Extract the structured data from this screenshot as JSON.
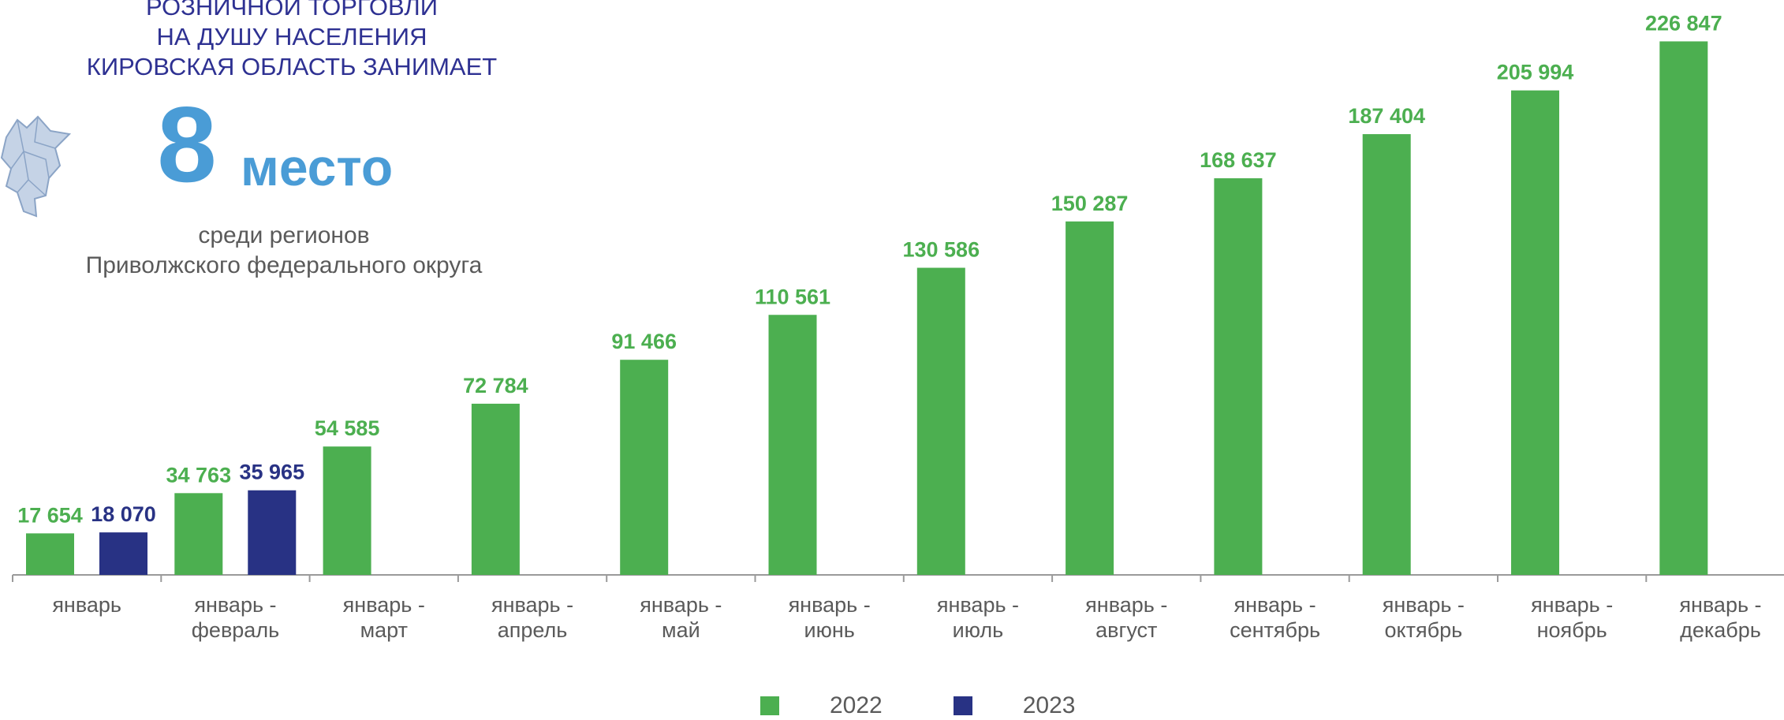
{
  "header": {
    "lines": [
      "РОЗНИЧНОЙ ТОРГОВЛИ",
      "НА ДУШУ НАСЕЛЕНИЯ",
      "КИРОВСКАЯ ОБЛАСТЬ  ЗАНИМАЕТ"
    ],
    "rank_number": "8",
    "rank_word": "место",
    "sub_lines": [
      "среди регионов",
      "Приволжского федерального округа"
    ]
  },
  "colors": {
    "series_2022": "#4caf50",
    "series_2023": "#283284",
    "heading": "#2e3192",
    "rank": "#4a9cd6",
    "axis": "#9a9a9a"
  },
  "chart_data": {
    "type": "bar",
    "categories": [
      [
        "январь"
      ],
      [
        "январь -",
        "февраль"
      ],
      [
        "январь -",
        "март"
      ],
      [
        "январь -",
        "апрель"
      ],
      [
        "январь -",
        "май"
      ],
      [
        "январь -",
        "июнь"
      ],
      [
        "январь -",
        "июль"
      ],
      [
        "январь -",
        "август"
      ],
      [
        "январь -",
        "сентябрь"
      ],
      [
        "январь -",
        "октябрь"
      ],
      [
        "январь -",
        "ноябрь"
      ],
      [
        "январь -",
        "декабрь"
      ]
    ],
    "series": [
      {
        "name": "2022",
        "color": "#4caf50",
        "values": [
          17654,
          34763,
          54585,
          72784,
          91466,
          110561,
          130586,
          150287,
          168637,
          187404,
          205994,
          226847
        ],
        "labels": [
          "17 654",
          "34 763",
          "54 585",
          "72 784",
          "91 466",
          "110 561",
          "130 586",
          "150 287",
          "168 637",
          "187 404",
          "205 994",
          "226 847"
        ]
      },
      {
        "name": "2023",
        "color": "#283284",
        "values": [
          18070,
          35965,
          null,
          null,
          null,
          null,
          null,
          null,
          null,
          null,
          null,
          null
        ],
        "labels": [
          "18 070",
          "35 965",
          null,
          null,
          null,
          null,
          null,
          null,
          null,
          null,
          null,
          null
        ]
      }
    ],
    "ylim": [
      0,
      227000
    ],
    "grid": false,
    "legend_position": "bottom"
  }
}
